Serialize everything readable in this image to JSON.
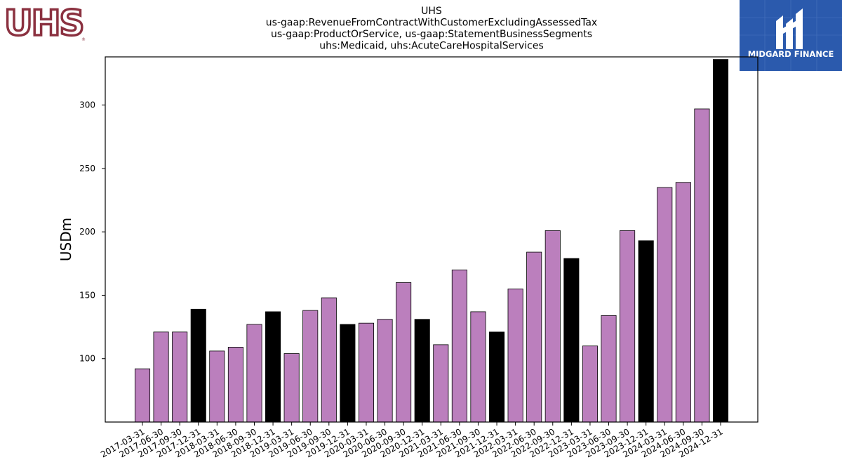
{
  "logos": {
    "left_text": "UHS",
    "right_text": "MIDGARD FINANCE",
    "right_bg": "#2b5aad"
  },
  "colors": {
    "bar_normal": "#bb7fbd",
    "bar_q4": "#000000"
  },
  "chart_data": {
    "type": "bar",
    "title_lines": [
      "UHS",
      "us-gaap:RevenueFromContractWithCustomerExcludingAssessedTax",
      "us-gaap:ProductOrService, us-gaap:StatementBusinessSegments",
      "uhs:Medicaid, uhs:AcuteCareHospitalServices"
    ],
    "xlabel": "",
    "ylabel": "USDm",
    "ylim": [
      50,
      338
    ],
    "yticks": [
      100,
      150,
      200,
      250,
      300
    ],
    "grid": false,
    "categories": [
      "2017-03-31",
      "2017-06-30",
      "2017-09-30",
      "2017-12-31",
      "2018-03-31",
      "2018-06-30",
      "2018-09-30",
      "2018-12-31",
      "2019-03-31",
      "2019-06-30",
      "2019-09-30",
      "2019-12-31",
      "2020-03-31",
      "2020-06-30",
      "2020-09-30",
      "2020-12-31",
      "2021-03-31",
      "2021-06-30",
      "2021-09-30",
      "2021-12-31",
      "2022-03-31",
      "2022-06-30",
      "2022-09-30",
      "2022-12-31",
      "2023-03-31",
      "2023-06-30",
      "2023-09-30",
      "2023-12-31",
      "2024-03-31",
      "2024-06-30",
      "2024-09-30",
      "2024-12-31"
    ],
    "values": [
      92,
      121,
      121,
      139,
      106,
      109,
      127,
      137,
      104,
      138,
      148,
      127,
      128,
      131,
      160,
      131,
      111,
      170,
      137,
      121,
      155,
      184,
      201,
      179,
      110,
      134,
      201,
      193,
      235,
      239,
      297,
      336
    ]
  }
}
